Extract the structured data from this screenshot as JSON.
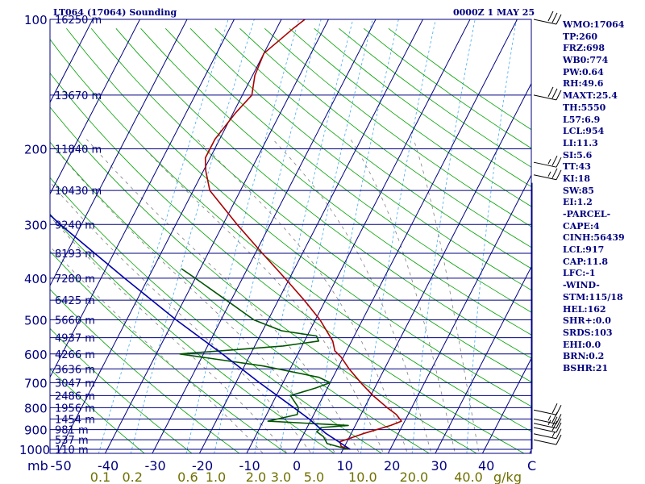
{
  "header": {
    "title": "LT064 (17064) Sounding",
    "time": "0000Z  1 MAY 25"
  },
  "indices": [
    "WMO:17064",
    "TP:260",
    "FRZ:698",
    "WB0:774",
    "PW:0.64",
    "RH:49.6",
    "MAXT:25.4",
    "TH:5550",
    "L57:6.9",
    "LCL:954",
    "LI:11.3",
    "SI:5.6",
    "TT:43",
    "KI:18",
    "SW:85",
    "EI:1.2",
    "-PARCEL-",
    "CAPE:4",
    "CINH:56439",
    "LCL:917",
    "CAP:11.8",
    "LFC:-1",
    "-WIND-",
    "STM:115/18",
    "HEL:162",
    "SHR+:0.0",
    "SRDS:103",
    "EHI:0.0",
    "BRN:0.2",
    "BSHR:21"
  ],
  "colors": {
    "frame": "#000080",
    "pressure_lines": "#000080",
    "isotherms": "#000080",
    "dry_adiabats": "#00a000",
    "moist_adiabats": "#808080",
    "mixing_ratio": "#44aaee",
    "temperature": "#aa0000",
    "dewpoint": "#005500",
    "parcel": "#0000aa",
    "wind_barbs": "#000000",
    "axis_text": "#000080",
    "mixing_text": "#707000"
  },
  "chart_data": {
    "type": "skew-t log-p sounding",
    "pressure_axis": {
      "unit": "mb",
      "ylim": [
        1000,
        100
      ],
      "ticks": [
        100,
        200,
        300,
        400,
        500,
        600,
        700,
        800,
        900,
        1000
      ]
    },
    "temperature_axis": {
      "unit": "C",
      "xlim": [
        -50,
        50
      ],
      "ticks": [
        "mb",
        "-50",
        "-40",
        "-30",
        "-20",
        "-10",
        "0",
        "10",
        "20",
        "30",
        "40",
        "C"
      ]
    },
    "mixing_ratio_axis": {
      "unit": "g/kg",
      "ticks": [
        "0.1",
        "0.2",
        "0.6",
        "1.0",
        "2.0",
        "3.0",
        "5.0",
        "10.0",
        "20.0",
        "40.0",
        "g/kg"
      ]
    },
    "height_labels": [
      {
        "p": 100,
        "label": "16250 m"
      },
      {
        "p": 150,
        "label": "13670 m"
      },
      {
        "p": 200,
        "label": "11840 m"
      },
      {
        "p": 250,
        "label": "10430 m"
      },
      {
        "p": 300,
        "label": "9240 m"
      },
      {
        "p": 350,
        "label": "8193 m"
      },
      {
        "p": 400,
        "label": "7280 m"
      },
      {
        "p": 450,
        "label": "6425 m"
      },
      {
        "p": 500,
        "label": "5660 m"
      },
      {
        "p": 550,
        "label": "4937 m"
      },
      {
        "p": 600,
        "label": "4266 m"
      },
      {
        "p": 650,
        "label": "3636 m"
      },
      {
        "p": 700,
        "label": "3047 m"
      },
      {
        "p": 750,
        "label": "2486 m"
      },
      {
        "p": 800,
        "label": "1956 m"
      },
      {
        "p": 850,
        "label": "1454 m"
      },
      {
        "p": 900,
        "label": "981 m"
      },
      {
        "p": 950,
        "label": "537 m"
      },
      {
        "p": 1000,
        "label": "110 m"
      }
    ],
    "series": [
      {
        "name": "temperature",
        "points": [
          {
            "p": 1000,
            "t": 11.5
          },
          {
            "p": 985,
            "t": 9.3
          },
          {
            "p": 960,
            "t": 8.5
          },
          {
            "p": 920,
            "t": 12.5
          },
          {
            "p": 880,
            "t": 17.5
          },
          {
            "p": 860,
            "t": 19.3
          },
          {
            "p": 830,
            "t": 17.5
          },
          {
            "p": 800,
            "t": 14.8
          },
          {
            "p": 750,
            "t": 10.5
          },
          {
            "p": 700,
            "t": 6.5
          },
          {
            "p": 650,
            "t": 2.5
          },
          {
            "p": 610,
            "t": -0.5
          },
          {
            "p": 590,
            "t": -2.5
          },
          {
            "p": 560,
            "t": -4.0
          },
          {
            "p": 500,
            "t": -9.0
          },
          {
            "p": 450,
            "t": -14.5
          },
          {
            "p": 400,
            "t": -21.0
          },
          {
            "p": 350,
            "t": -28.5
          },
          {
            "p": 300,
            "t": -37.0
          },
          {
            "p": 270,
            "t": -42.5
          },
          {
            "p": 250,
            "t": -46.5
          },
          {
            "p": 225,
            "t": -49.5
          },
          {
            "p": 210,
            "t": -51.0
          },
          {
            "p": 190,
            "t": -51.0
          },
          {
            "p": 165,
            "t": -49.5
          },
          {
            "p": 150,
            "t": -48.0
          },
          {
            "p": 135,
            "t": -49.5
          },
          {
            "p": 120,
            "t": -50.0
          },
          {
            "p": 105,
            "t": -46.5
          },
          {
            "p": 100,
            "t": -45.0
          }
        ]
      },
      {
        "name": "dewpoint",
        "points": [
          {
            "p": 1000,
            "t": 11.0
          },
          {
            "p": 970,
            "t": 6.0
          },
          {
            "p": 935,
            "t": 4.5
          },
          {
            "p": 910,
            "t": 2.5
          },
          {
            "p": 890,
            "t": 3.0
          },
          {
            "p": 880,
            "t": 8.5
          },
          {
            "p": 860,
            "t": -9.0
          },
          {
            "p": 830,
            "t": -3.5
          },
          {
            "p": 800,
            "t": -4.0
          },
          {
            "p": 750,
            "t": -7.0
          },
          {
            "p": 720,
            "t": -2.5
          },
          {
            "p": 700,
            "t": 0.0
          },
          {
            "p": 680,
            "t": -3.0
          },
          {
            "p": 640,
            "t": -16.0
          },
          {
            "p": 600,
            "t": -35.0
          },
          {
            "p": 575,
            "t": -14.0
          },
          {
            "p": 560,
            "t": -7.0
          },
          {
            "p": 545,
            "t": -8.0
          },
          {
            "p": 530,
            "t": -16.0
          },
          {
            "p": 500,
            "t": -23.0
          },
          {
            "p": 450,
            "t": -31.0
          },
          {
            "p": 400,
            "t": -40.0
          },
          {
            "p": 380,
            "t": -44.0
          }
        ]
      },
      {
        "name": "parcel",
        "points": [
          {
            "p": 1000,
            "t": 11.5
          },
          {
            "p": 917,
            "t": 4.5
          },
          {
            "p": 850,
            "t": -0.5
          },
          {
            "p": 800,
            "t": -5.0
          },
          {
            "p": 700,
            "t": -15.0
          },
          {
            "p": 600,
            "t": -26.0
          },
          {
            "p": 500,
            "t": -39.5
          },
          {
            "p": 400,
            "t": -55.0
          },
          {
            "p": 300,
            "t": -74.5
          },
          {
            "p": 250,
            "t": -86.0
          },
          {
            "p": 200,
            "t": -98.0
          },
          {
            "p": 150,
            "t": -113.0
          },
          {
            "p": 120,
            "t": -122.0
          },
          {
            "p": 103,
            "t": -128.0
          }
        ]
      }
    ],
    "wind_barbs_knots": [
      {
        "p": 100,
        "speed": 30
      },
      {
        "p": 150,
        "speed": 30
      },
      {
        "p": 215,
        "speed": 25
      },
      {
        "p": 230,
        "speed": 25
      },
      {
        "p": 810,
        "speed": 20
      },
      {
        "p": 850,
        "speed": 25
      },
      {
        "p": 870,
        "speed": 25
      },
      {
        "p": 890,
        "speed": 20
      },
      {
        "p": 920,
        "speed": 15
      },
      {
        "p": 950,
        "speed": 10
      }
    ],
    "grid": {
      "isotherm_step_c": 10,
      "dry_adiabats_k": [
        240,
        250,
        260,
        270,
        280,
        290,
        300,
        310,
        320,
        330,
        340,
        350,
        360,
        370,
        380,
        390,
        400,
        410,
        420,
        430,
        440,
        450,
        460,
        470
      ],
      "moist_adiabats_c": [
        -5,
        0,
        5,
        10,
        15,
        20,
        25,
        30,
        35,
        40
      ],
      "mixing_ratio_gkg": [
        0.1,
        0.2,
        0.6,
        1.0,
        2.0,
        3.0,
        5.0,
        10.0,
        20.0,
        40.0
      ]
    }
  }
}
